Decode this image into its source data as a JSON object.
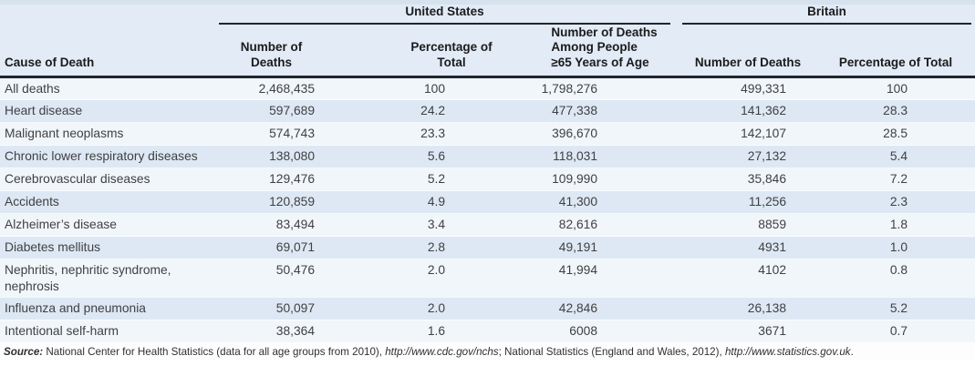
{
  "table": {
    "groups": [
      {
        "label": "United States"
      },
      {
        "label": "Britain"
      }
    ],
    "headers": {
      "cause": "Cause of Death",
      "us_deaths": "Number of Deaths",
      "us_pct": "Percentage of Total",
      "us_65": "Number of Deaths\nAmong People\n≥65 Years of Age",
      "uk_deaths": "Number of Deaths",
      "uk_pct": "Percentage of Total"
    },
    "rows": [
      {
        "cause": "All deaths",
        "us_deaths": "2,468,435",
        "us_pct": "100",
        "us_65": "1,798,276",
        "uk_deaths": "499,331",
        "uk_pct": "100"
      },
      {
        "cause": "Heart disease",
        "us_deaths": "597,689",
        "us_pct": "24.2",
        "us_65": "477,338",
        "uk_deaths": "141,362",
        "uk_pct": "28.3"
      },
      {
        "cause": "Malignant neoplasms",
        "us_deaths": "574,743",
        "us_pct": "23.3",
        "us_65": "396,670",
        "uk_deaths": "142,107",
        "uk_pct": "28.5"
      },
      {
        "cause": "Chronic lower respiratory diseases",
        "us_deaths": "138,080",
        "us_pct": "5.6",
        "us_65": "118,031",
        "uk_deaths": "27,132",
        "uk_pct": "5.4"
      },
      {
        "cause": "Cerebrovascular diseases",
        "us_deaths": "129,476",
        "us_pct": "5.2",
        "us_65": "109,990",
        "uk_deaths": "35,846",
        "uk_pct": "7.2"
      },
      {
        "cause": "Accidents",
        "us_deaths": "120,859",
        "us_pct": "4.9",
        "us_65": "41,300",
        "uk_deaths": "11,256",
        "uk_pct": "2.3"
      },
      {
        "cause": "Alzheimer’s disease",
        "us_deaths": "83,494",
        "us_pct": "3.4",
        "us_65": "82,616",
        "uk_deaths": "8859",
        "uk_pct": "1.8"
      },
      {
        "cause": "Diabetes mellitus",
        "us_deaths": "69,071",
        "us_pct": "2.8",
        "us_65": "49,191",
        "uk_deaths": "4931",
        "uk_pct": "1.0"
      },
      {
        "cause": "Nephritis, nephritic syndrome, nephrosis",
        "us_deaths": "50,476",
        "us_pct": "2.0",
        "us_65": "41,994",
        "uk_deaths": "4102",
        "uk_pct": "0.8"
      },
      {
        "cause": "Influenza and pneumonia",
        "us_deaths": "50,097",
        "us_pct": "2.0",
        "us_65": "42,846",
        "uk_deaths": "26,138",
        "uk_pct": "5.2"
      },
      {
        "cause": "Intentional self-harm",
        "us_deaths": "38,364",
        "us_pct": "1.6",
        "us_65": "6008",
        "uk_deaths": "3671",
        "uk_pct": "0.7"
      }
    ]
  },
  "source": {
    "label": "Source:",
    "part1": " National Center for Health Statistics (data for all age groups from 2010), ",
    "url1": "http://www.cdc.gov/nchs",
    "part2": "; National Statistics (England and Wales, 2012), ",
    "url2": "http://www.statistics.gov.uk",
    "part3": "."
  },
  "colors": {
    "header-bg": "#e2ebf6",
    "row-light": "#f1f6fb",
    "row-dark": "#dde8f4",
    "rule": "#20262e"
  }
}
